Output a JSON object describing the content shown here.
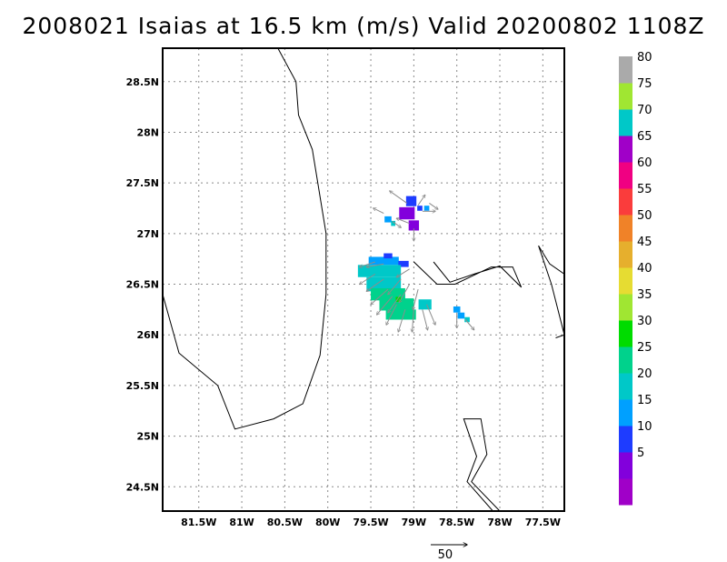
{
  "title": "2008021 Isaias at 16.5 km (m/s) Valid 20200802 1108Z",
  "chart_data": {
    "type": "heatmap",
    "title": "2008021 Isaias at 16.5 km (m/s) Valid 20200802 1108Z",
    "units": "m/s",
    "xlim": [
      -81.92,
      -77.25
    ],
    "ylim": [
      24.26,
      28.83
    ],
    "x_ticks": [
      {
        "value": -81.5,
        "label": "81.5W"
      },
      {
        "value": -81.0,
        "label": "81W"
      },
      {
        "value": -80.5,
        "label": "80.5W"
      },
      {
        "value": -80.0,
        "label": "80W"
      },
      {
        "value": -79.5,
        "label": "79.5W"
      },
      {
        "value": -79.0,
        "label": "79W"
      },
      {
        "value": -78.5,
        "label": "78.5W"
      },
      {
        "value": -78.0,
        "label": "78W"
      },
      {
        "value": -77.5,
        "label": "77.5W"
      }
    ],
    "y_ticks": [
      {
        "value": 24.5,
        "label": "24.5N"
      },
      {
        "value": 25.0,
        "label": "25N"
      },
      {
        "value": 25.5,
        "label": "25.5N"
      },
      {
        "value": 26.0,
        "label": "26N"
      },
      {
        "value": 26.5,
        "label": "26.5N"
      },
      {
        "value": 27.0,
        "label": "27N"
      },
      {
        "value": 27.5,
        "label": "27.5N"
      },
      {
        "value": 28.0,
        "label": "28N"
      },
      {
        "value": 28.5,
        "label": "28.5N"
      }
    ],
    "grid": true,
    "colorbar": {
      "levels": [
        {
          "color": "#a000c8",
          "label": ""
        },
        {
          "color": "#8200dc",
          "label": "5"
        },
        {
          "color": "#1e3cff",
          "label": "10"
        },
        {
          "color": "#00a0ff",
          "label": "15"
        },
        {
          "color": "#00c8c8",
          "label": "20"
        },
        {
          "color": "#00d28c",
          "label": "25"
        },
        {
          "color": "#00dc00",
          "label": "30"
        },
        {
          "color": "#a0e632",
          "label": "35"
        },
        {
          "color": "#e6dc32",
          "label": "40"
        },
        {
          "color": "#e6af2d",
          "label": "45"
        },
        {
          "color": "#f08228",
          "label": "50"
        },
        {
          "color": "#fa3c3c",
          "label": "55"
        },
        {
          "color": "#f00082",
          "label": "60"
        },
        {
          "color": "#a000c8",
          "label": "65"
        },
        {
          "color": "#00c8c8",
          "label": "70"
        },
        {
          "color": "#a0e632",
          "label": "75"
        },
        {
          "color": "#aaaaaa",
          "label": "80"
        }
      ]
    },
    "coastlines": [
      [
        [
          -80.58,
          28.83
        ],
        [
          -80.37,
          28.5
        ],
        [
          -80.34,
          28.17
        ],
        [
          -80.18,
          27.83
        ],
        [
          -80.02,
          27.0
        ],
        [
          -80.02,
          26.4
        ],
        [
          -80.09,
          25.8
        ],
        [
          -80.29,
          25.32
        ],
        [
          -80.63,
          25.17
        ],
        [
          -81.08,
          25.07
        ],
        [
          -81.28,
          25.5
        ],
        [
          -81.73,
          25.82
        ],
        [
          -81.92,
          26.4
        ]
      ],
      [
        [
          -78.77,
          26.72
        ],
        [
          -78.58,
          26.52
        ],
        [
          -78.3,
          26.6
        ],
        [
          -78.0,
          26.68
        ],
        [
          -77.75,
          26.47
        ],
        [
          -77.85,
          26.67
        ],
        [
          -78.1,
          26.67
        ],
        [
          -78.52,
          26.5
        ],
        [
          -78.73,
          26.5
        ],
        [
          -79.0,
          26.72
        ]
      ],
      [
        [
          -77.25,
          26.6
        ],
        [
          -77.42,
          26.7
        ],
        [
          -77.55,
          26.88
        ],
        [
          -77.4,
          26.5
        ],
        [
          -77.25,
          26.0
        ],
        [
          -77.35,
          25.97
        ]
      ],
      [
        [
          -78.0,
          24.26
        ],
        [
          -78.33,
          24.55
        ],
        [
          -78.15,
          24.82
        ],
        [
          -78.22,
          25.17
        ],
        [
          -78.42,
          25.17
        ],
        [
          -78.27,
          24.8
        ],
        [
          -78.38,
          24.55
        ],
        [
          -78.08,
          24.26
        ]
      ]
    ],
    "speed_cells": [
      {
        "lon": -79.03,
        "lat": 27.32,
        "w": 0.12,
        "h": 0.1,
        "value": 10
      },
      {
        "lon": -78.93,
        "lat": 27.25,
        "w": 0.06,
        "h": 0.05,
        "value": 10
      },
      {
        "lon": -79.08,
        "lat": 27.2,
        "w": 0.18,
        "h": 0.12,
        "value": 5
      },
      {
        "lon": -79.0,
        "lat": 27.08,
        "w": 0.12,
        "h": 0.1,
        "value": 5
      },
      {
        "lon": -78.85,
        "lat": 27.25,
        "w": 0.06,
        "h": 0.05,
        "value": 15
      },
      {
        "lon": -79.3,
        "lat": 27.14,
        "w": 0.08,
        "h": 0.06,
        "value": 15
      },
      {
        "lon": -79.24,
        "lat": 27.1,
        "w": 0.05,
        "h": 0.05,
        "value": 20
      },
      {
        "lon": -79.35,
        "lat": 26.73,
        "w": 0.35,
        "h": 0.08,
        "value": 15
      },
      {
        "lon": -79.3,
        "lat": 26.78,
        "w": 0.1,
        "h": 0.05,
        "value": 10
      },
      {
        "lon": -79.12,
        "lat": 26.7,
        "w": 0.12,
        "h": 0.06,
        "value": 10
      },
      {
        "lon": -79.4,
        "lat": 26.63,
        "w": 0.5,
        "h": 0.12,
        "value": 20
      },
      {
        "lon": -79.35,
        "lat": 26.5,
        "w": 0.4,
        "h": 0.14,
        "value": 20
      },
      {
        "lon": -79.3,
        "lat": 26.4,
        "w": 0.4,
        "h": 0.12,
        "value": 25
      },
      {
        "lon": -79.2,
        "lat": 26.3,
        "w": 0.4,
        "h": 0.12,
        "value": 25
      },
      {
        "lon": -79.15,
        "lat": 26.2,
        "w": 0.35,
        "h": 0.1,
        "value": 25
      },
      {
        "lon": -79.18,
        "lat": 26.35,
        "w": 0.06,
        "h": 0.05,
        "value": 30
      },
      {
        "lon": -78.87,
        "lat": 26.3,
        "w": 0.15,
        "h": 0.1,
        "value": 20
      },
      {
        "lon": -78.5,
        "lat": 26.25,
        "w": 0.08,
        "h": 0.06,
        "value": 15
      },
      {
        "lon": -78.45,
        "lat": 26.19,
        "w": 0.08,
        "h": 0.06,
        "value": 15
      },
      {
        "lon": -78.38,
        "lat": 26.15,
        "w": 0.06,
        "h": 0.05,
        "value": 20
      }
    ],
    "vectors": [
      {
        "lon": -79.08,
        "lat": 27.3,
        "u": -0.2,
        "v": 0.12
      },
      {
        "lon": -78.95,
        "lat": 27.28,
        "u": 0.08,
        "v": 0.1
      },
      {
        "lon": -78.9,
        "lat": 27.22,
        "u": 0.15,
        "v": 0.0
      },
      {
        "lon": -78.82,
        "lat": 27.3,
        "u": 0.1,
        "v": -0.06
      },
      {
        "lon": -79.05,
        "lat": 27.1,
        "u": -0.15,
        "v": 0.05
      },
      {
        "lon": -79.0,
        "lat": 27.05,
        "u": 0.0,
        "v": -0.12
      },
      {
        "lon": -79.35,
        "lat": 27.2,
        "u": -0.12,
        "v": 0.05
      },
      {
        "lon": -79.25,
        "lat": 27.12,
        "u": 0.1,
        "v": -0.06
      },
      {
        "lon": -79.45,
        "lat": 26.72,
        "u": -0.18,
        "v": -0.05
      },
      {
        "lon": -79.35,
        "lat": 26.7,
        "u": -0.2,
        "v": -0.03
      },
      {
        "lon": -79.45,
        "lat": 26.6,
        "u": -0.18,
        "v": -0.1
      },
      {
        "lon": -79.35,
        "lat": 26.55,
        "u": -0.2,
        "v": -0.12
      },
      {
        "lon": -79.3,
        "lat": 26.45,
        "u": -0.2,
        "v": -0.15
      },
      {
        "lon": -79.25,
        "lat": 26.38,
        "u": -0.18,
        "v": -0.18
      },
      {
        "lon": -79.2,
        "lat": 26.3,
        "u": -0.12,
        "v": -0.2
      },
      {
        "lon": -79.1,
        "lat": 26.25,
        "u": -0.08,
        "v": -0.22
      },
      {
        "lon": -79.0,
        "lat": 26.25,
        "u": -0.02,
        "v": -0.22
      },
      {
        "lon": -78.9,
        "lat": 26.25,
        "u": 0.06,
        "v": -0.2
      },
      {
        "lon": -78.85,
        "lat": 26.3,
        "u": 0.1,
        "v": -0.2
      },
      {
        "lon": -79.15,
        "lat": 26.55,
        "u": -0.15,
        "v": -0.15
      },
      {
        "lon": -79.05,
        "lat": 26.5,
        "u": -0.12,
        "v": -0.18
      },
      {
        "lon": -78.95,
        "lat": 26.45,
        "u": -0.06,
        "v": -0.2
      },
      {
        "lon": -79.15,
        "lat": 26.4,
        "u": -0.15,
        "v": -0.18
      },
      {
        "lon": -79.05,
        "lat": 26.65,
        "u": -0.15,
        "v": -0.08
      },
      {
        "lon": -78.5,
        "lat": 26.22,
        "u": 0.0,
        "v": -0.15
      },
      {
        "lon": -78.4,
        "lat": 26.15,
        "u": 0.1,
        "v": -0.1
      }
    ],
    "reference_vector": {
      "label": "50",
      "lon_length": 0.42
    }
  }
}
